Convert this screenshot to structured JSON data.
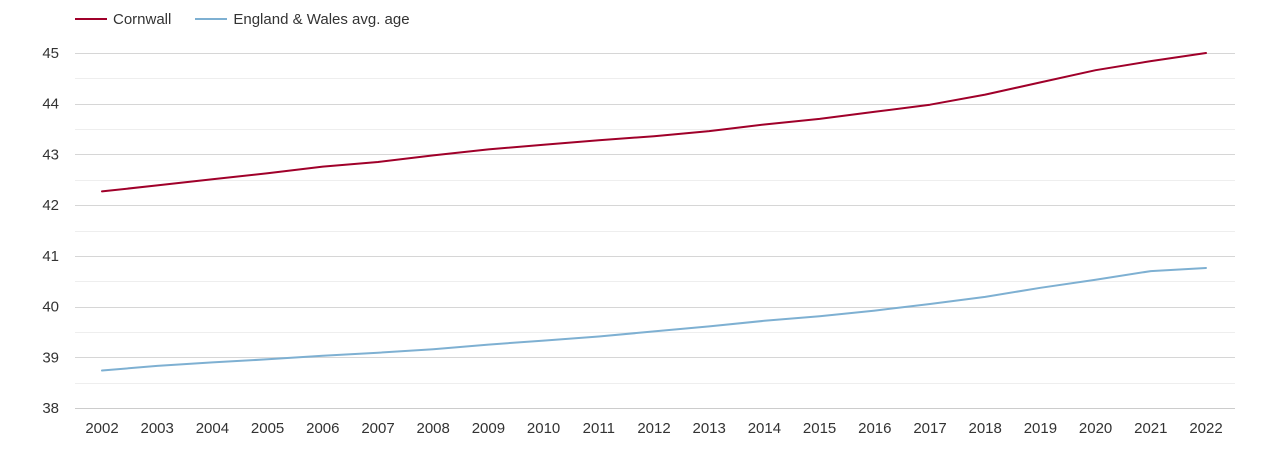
{
  "chart_data": {
    "type": "line",
    "title": "",
    "xlabel": "",
    "ylabel": "",
    "categories": [
      "2002",
      "2003",
      "2004",
      "2005",
      "2006",
      "2007",
      "2008",
      "2009",
      "2010",
      "2011",
      "2012",
      "2013",
      "2014",
      "2015",
      "2016",
      "2017",
      "2018",
      "2019",
      "2020",
      "2021",
      "2022"
    ],
    "yticks": [
      "38",
      "39",
      "40",
      "41",
      "42",
      "43",
      "44",
      "45"
    ],
    "ylim": [
      38,
      45
    ],
    "grid": true,
    "legend_position": "top-left",
    "series": [
      {
        "name": "Cornwall",
        "color": "#a0002a",
        "values": [
          42.27,
          42.39,
          42.51,
          42.63,
          42.76,
          42.85,
          42.98,
          43.1,
          43.19,
          43.28,
          43.36,
          43.46,
          43.59,
          43.7,
          43.84,
          43.98,
          44.18,
          44.42,
          44.66,
          44.84,
          45.0
        ]
      },
      {
        "name": "England & Wales avg. age",
        "color": "#7eb0d2",
        "values": [
          38.74,
          38.83,
          38.9,
          38.96,
          39.03,
          39.09,
          39.16,
          39.25,
          39.33,
          39.41,
          39.51,
          39.61,
          39.72,
          39.81,
          39.92,
          40.05,
          40.19,
          40.37,
          40.53,
          40.7,
          40.76
        ]
      }
    ]
  }
}
